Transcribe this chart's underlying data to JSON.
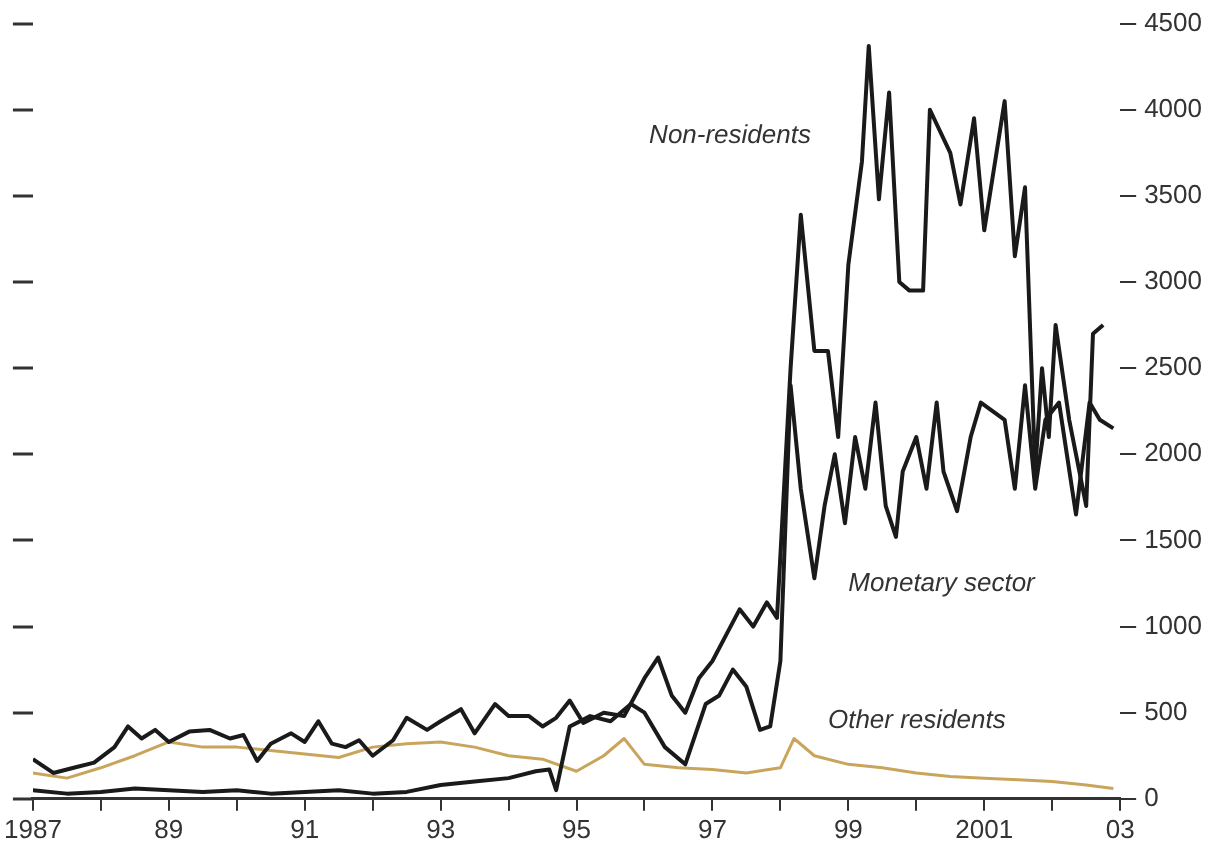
{
  "chart_data": {
    "type": "line",
    "xlim": [
      1987,
      2003
    ],
    "xticks": [
      1987,
      {
        "value": 1988,
        "label": null
      },
      {
        "value": 1989,
        "label": "89"
      },
      {
        "value": 1990,
        "label": null
      },
      {
        "value": 1991,
        "label": "91"
      },
      {
        "value": 1992,
        "label": null
      },
      {
        "value": 1993,
        "label": "93"
      },
      {
        "value": 1994,
        "label": null
      },
      {
        "value": 1995,
        "label": "95"
      },
      {
        "value": 1996,
        "label": null
      },
      {
        "value": 1997,
        "label": "97"
      },
      {
        "value": 1998,
        "label": null
      },
      {
        "value": 1999,
        "label": "99"
      },
      {
        "value": 2000,
        "label": null
      },
      2001,
      {
        "value": 2002,
        "label": null
      },
      {
        "value": 2003,
        "label": "03"
      }
    ],
    "ylim": [
      0,
      4500
    ],
    "yticks": [
      0,
      500,
      1000,
      1500,
      2000,
      2500,
      3000,
      3500,
      4000,
      4500
    ],
    "grid": false,
    "legend": false,
    "marker": "none",
    "line_style": "solid",
    "series": [
      {
        "name": "Non-residents",
        "color": "#1a1a1a",
        "x": [
          1987.0,
          1987.3,
          1987.6,
          1987.9,
          1988.2,
          1988.4,
          1988.6,
          1988.8,
          1989.0,
          1989.3,
          1989.6,
          1989.9,
          1990.1,
          1990.3,
          1990.5,
          1990.8,
          1991.0,
          1991.2,
          1991.4,
          1991.6,
          1991.8,
          1992.0,
          1992.3,
          1992.5,
          1992.8,
          1993.0,
          1993.3,
          1993.5,
          1993.8,
          1994.0,
          1994.3,
          1994.5,
          1994.7,
          1994.9,
          1995.1,
          1995.4,
          1995.7,
          1996.0,
          1996.2,
          1996.4,
          1996.6,
          1996.8,
          1997.0,
          1997.2,
          1997.4,
          1997.6,
          1997.8,
          1997.95,
          1998.15,
          1998.3,
          1998.5,
          1998.7,
          1998.85,
          1999.0,
          1999.2,
          1999.3,
          1999.45,
          1999.6,
          1999.75,
          1999.9,
          2000.1,
          2000.2,
          2000.5,
          2000.65,
          2000.85,
          2001.0,
          2001.1,
          2001.3,
          2001.45,
          2001.6,
          2001.75,
          2001.85,
          2001.95,
          2002.05,
          2002.25,
          2002.5,
          2002.6,
          2002.75
        ],
        "values": [
          230,
          150,
          180,
          210,
          300,
          420,
          350,
          400,
          330,
          390,
          400,
          350,
          370,
          220,
          320,
          380,
          330,
          450,
          320,
          300,
          340,
          250,
          340,
          470,
          400,
          450,
          520,
          380,
          550,
          480,
          480,
          420,
          470,
          570,
          440,
          500,
          480,
          700,
          820,
          600,
          500,
          700,
          800,
          950,
          1100,
          1000,
          1140,
          1050,
          2500,
          3390,
          2600,
          2600,
          2100,
          3100,
          3700,
          4370,
          3480,
          4100,
          3000,
          2950,
          2950,
          4000,
          3750,
          3450,
          3950,
          3300,
          3550,
          4050,
          3150,
          3550,
          1900,
          2500,
          2100,
          2750,
          2200,
          1700,
          2700,
          2750
        ]
      },
      {
        "name": "Monetary sector",
        "color": "#1a1a1a",
        "x": [
          1987.0,
          1987.5,
          1988.0,
          1988.5,
          1989.0,
          1989.5,
          1990.0,
          1990.5,
          1991.0,
          1991.5,
          1992.0,
          1992.5,
          1993.0,
          1993.5,
          1994.0,
          1994.4,
          1994.6,
          1994.7,
          1994.9,
          1995.2,
          1995.5,
          1995.8,
          1996.0,
          1996.3,
          1996.6,
          1996.9,
          1997.1,
          1997.3,
          1997.5,
          1997.7,
          1997.85,
          1998.0,
          1998.15,
          1998.3,
          1998.5,
          1998.65,
          1998.8,
          1998.95,
          1999.1,
          1999.25,
          1999.4,
          1999.55,
          1999.7,
          1999.8,
          2000.0,
          2000.15,
          2000.3,
          2000.4,
          2000.6,
          2000.8,
          2000.95,
          2001.3,
          2001.45,
          2001.6,
          2001.75,
          2001.9,
          2002.1,
          2002.35,
          2002.55,
          2002.7,
          2002.9
        ],
        "values": [
          50,
          30,
          40,
          60,
          50,
          40,
          50,
          30,
          40,
          50,
          30,
          40,
          80,
          100,
          120,
          160,
          170,
          50,
          420,
          480,
          450,
          550,
          500,
          300,
          200,
          550,
          600,
          750,
          650,
          400,
          420,
          800,
          2400,
          1800,
          1280,
          1700,
          2000,
          1600,
          2100,
          1800,
          2300,
          1700,
          1520,
          1900,
          2100,
          1800,
          2300,
          1900,
          1670,
          2100,
          2300,
          2200,
          1800,
          2400,
          1800,
          2200,
          2300,
          1650,
          2300,
          2200,
          2150
        ]
      },
      {
        "name": "Other residents",
        "color": "#c9a55c",
        "x": [
          1987.0,
          1987.5,
          1988.0,
          1988.5,
          1989.0,
          1989.5,
          1990.0,
          1990.5,
          1991.0,
          1991.5,
          1992.0,
          1992.5,
          1993.0,
          1993.5,
          1994.0,
          1994.5,
          1995.0,
          1995.4,
          1995.7,
          1996.0,
          1996.5,
          1997.0,
          1997.5,
          1998.0,
          1998.2,
          1998.5,
          1999.0,
          1999.5,
          2000.0,
          2000.5,
          2001.0,
          2001.5,
          2002.0,
          2002.5,
          2002.9
        ],
        "values": [
          150,
          120,
          180,
          250,
          330,
          300,
          300,
          280,
          260,
          240,
          300,
          320,
          330,
          300,
          250,
          230,
          160,
          250,
          350,
          200,
          180,
          170,
          150,
          180,
          350,
          250,
          200,
          180,
          150,
          130,
          120,
          110,
          100,
          80,
          60
        ]
      }
    ]
  }
}
